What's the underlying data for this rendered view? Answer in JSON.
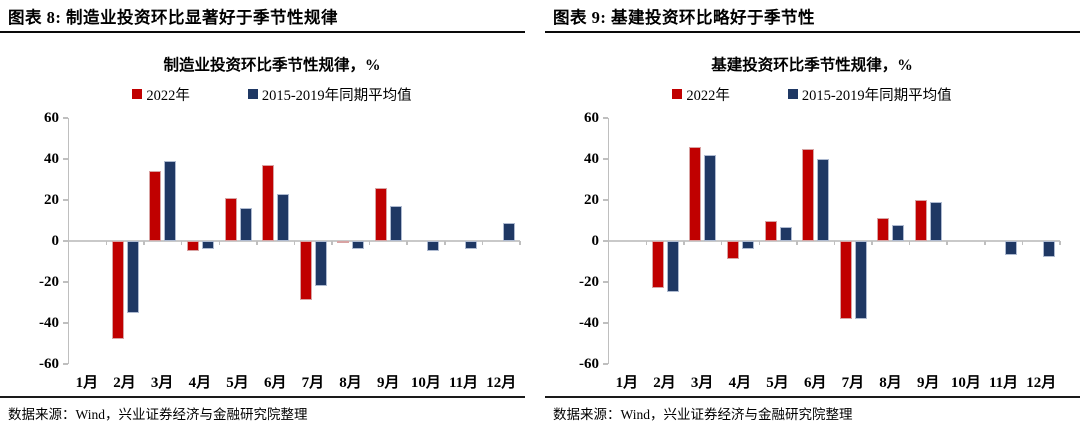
{
  "colors": {
    "series_2022": "#c00000",
    "series_avg": "#1f3864",
    "axis_gray": "#bfbfbf",
    "header_rule": "#0a0a0a"
  },
  "panels": [
    {
      "header": "图表 8: 制造业投资环比显著好于季节性规律",
      "source": "数据来源：Wind，兴业证券经济与金融研究院整理"
    },
    {
      "header": "图表 9: 基建投资环比略好于季节性",
      "source": "数据来源：Wind，兴业证券经济与金融研究院整理"
    }
  ],
  "chart_data": [
    {
      "type": "bar",
      "title": "制造业投资环比季节性规律，%",
      "categories": [
        "1月",
        "2月",
        "3月",
        "4月",
        "5月",
        "6月",
        "7月",
        "8月",
        "9月",
        "10月",
        "11月",
        "12月"
      ],
      "series": [
        {
          "name": "2022年",
          "color": "#c00000",
          "values": [
            null,
            -48,
            34,
            -5,
            21,
            37,
            -29,
            -1,
            26,
            null,
            null,
            null
          ]
        },
        {
          "name": "2015-2019年同期平均值",
          "color": "#1f3864",
          "values": [
            null,
            -35,
            39,
            -4,
            16,
            23,
            -22,
            -4,
            17,
            -5,
            -4,
            9
          ]
        }
      ],
      "xlabel": "",
      "ylabel": "",
      "ylim": [
        -60,
        60
      ],
      "yticks": [
        60,
        40,
        20,
        0,
        -20,
        -40,
        -60
      ],
      "grid": false,
      "legend_position": "top"
    },
    {
      "type": "bar",
      "title": "基建投资环比季节性规律，%",
      "categories": [
        "1月",
        "2月",
        "3月",
        "4月",
        "5月",
        "6月",
        "7月",
        "8月",
        "9月",
        "10月",
        "11月",
        "12月"
      ],
      "series": [
        {
          "name": "2022年",
          "color": "#c00000",
          "values": [
            null,
            -23,
            46,
            -9,
            10,
            45,
            -38,
            11,
            20,
            null,
            null,
            null
          ]
        },
        {
          "name": "2015-2019年同期平均值",
          "color": "#1f3864",
          "values": [
            null,
            -25,
            42,
            -4,
            7,
            40,
            -38,
            8,
            19,
            null,
            -7,
            -8
          ]
        }
      ],
      "xlabel": "",
      "ylabel": "",
      "ylim": [
        -60,
        60
      ],
      "yticks": [
        60,
        40,
        20,
        0,
        -20,
        -40,
        -60
      ],
      "grid": false,
      "legend_position": "top"
    }
  ]
}
